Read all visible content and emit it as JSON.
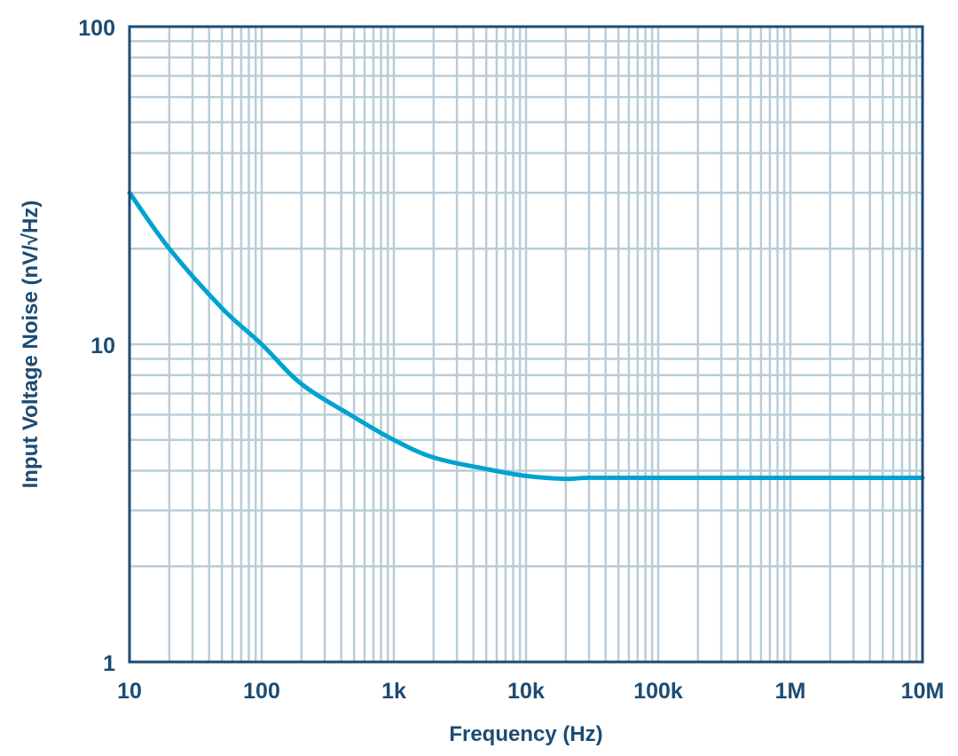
{
  "chart_data": {
    "type": "line",
    "title": "",
    "xlabel": "Frequency (Hz)",
    "ylabel": "Input Voltage Noise (nV/√Hz)",
    "xscale": "log",
    "yscale": "log",
    "xlim": [
      10,
      10000000
    ],
    "ylim": [
      1,
      100
    ],
    "grid": true,
    "x_ticks": [
      10,
      100,
      1000,
      10000,
      100000,
      1000000,
      10000000
    ],
    "x_tick_labels": [
      "10",
      "100",
      "1k",
      "10k",
      "100k",
      "1M",
      "10M"
    ],
    "y_ticks": [
      1,
      10,
      100
    ],
    "y_tick_labels": [
      "1",
      "10",
      "100"
    ],
    "series": [
      {
        "color": "#00a3d0",
        "x": [
          10,
          20,
          50,
          100,
          200,
          500,
          1000,
          2000,
          5000,
          10000,
          20000,
          30000,
          100000,
          1000000,
          10000000
        ],
        "y": [
          30,
          20,
          13,
          10,
          7.5,
          5.9,
          5.0,
          4.4,
          4.05,
          3.85,
          3.77,
          3.8,
          3.8,
          3.8,
          3.8
        ]
      }
    ],
    "colors": {
      "axis": "#1d4b72",
      "grid": "#b9cdd9",
      "text": "#1d4b72"
    }
  }
}
